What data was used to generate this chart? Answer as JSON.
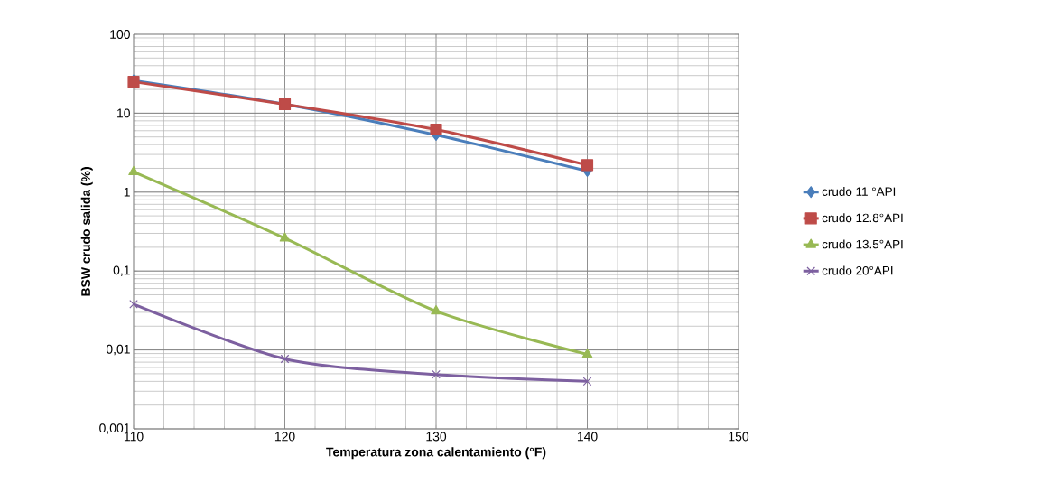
{
  "chart_data": {
    "type": "line",
    "xlabel": "Temperatura zona calentamiento (°F)",
    "ylabel": "BSW crudo salida (%)",
    "x": [
      110,
      120,
      130,
      140
    ],
    "series": [
      {
        "name": "crudo 11 °API",
        "color": "#4a7ebb",
        "marker": "diamond",
        "values": [
          26,
          13,
          5.3,
          1.85
        ]
      },
      {
        "name": "crudo 12.8°API",
        "color": "#be4b48",
        "marker": "square",
        "values": [
          25,
          13,
          6.2,
          2.2
        ]
      },
      {
        "name": "crudo 13.5°API",
        "color": "#98b954",
        "marker": "triangle",
        "values": [
          1.8,
          0.26,
          0.031,
          0.0088
        ]
      },
      {
        "name": "crudo 20°API",
        "color": "#7d60a0",
        "marker": "cross",
        "values": [
          0.038,
          0.0077,
          0.0049,
          0.004
        ]
      }
    ],
    "xlim": [
      110,
      150
    ],
    "xticks": [
      110,
      120,
      130,
      140,
      150
    ],
    "ylim": [
      0.001,
      100
    ],
    "yticks": [
      {
        "value": 0.001,
        "label": "0,001"
      },
      {
        "value": 0.01,
        "label": "0,01"
      },
      {
        "value": 0.1,
        "label": "0,1"
      },
      1,
      10,
      100
    ],
    "log": "y",
    "grid": true,
    "legend": "right",
    "line_style": "solid"
  }
}
